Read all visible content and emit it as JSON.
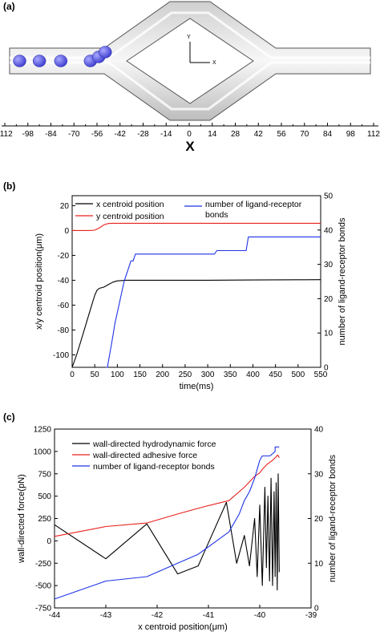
{
  "panels": {
    "a": "(a)",
    "b": "(b)",
    "c": "(c)"
  },
  "colors": {
    "black": "#000000",
    "red": "#e8211c",
    "blue": "#1f34e6",
    "cell": "#5a5ae6",
    "pipe": "#d9d9d9"
  },
  "chart_data": [
    {
      "type": "diagram",
      "panel": "(a)",
      "xlabel": "X",
      "x_ticks": [
        "-112",
        "-98",
        "-84",
        "-70",
        "-56",
        "-42",
        "-28",
        "-14",
        "0",
        "14",
        "28",
        "42",
        "56",
        "70",
        "84",
        "98",
        "112"
      ],
      "xlim": [
        -112,
        112
      ],
      "axes_labels": {
        "y": "Y",
        "x": "X"
      },
      "cells_x": [
        -103,
        -91,
        -78,
        -60,
        -55,
        -51
      ]
    },
    {
      "type": "line",
      "panel": "(b)",
      "xlabel": "time(ms)",
      "ylabel": "x/y centroid position(μm)",
      "ylabel_right": "number of ligand-receptor bonds",
      "xlim": [
        0,
        550
      ],
      "ylim": [
        -110,
        28
      ],
      "ylim_right": [
        0,
        50
      ],
      "x_ticks": [
        "0",
        "50",
        "100",
        "150",
        "200",
        "250",
        "300",
        "350",
        "400",
        "450",
        "500",
        "550"
      ],
      "y_ticks": [
        "20",
        "0",
        "-20",
        "-40",
        "-60",
        "-80",
        "-100"
      ],
      "y_ticks_right": [
        "50",
        "40",
        "30",
        "20",
        "10",
        "0"
      ],
      "series": [
        {
          "name": "x centroid position",
          "axis": "left",
          "color": "#000000",
          "x": [
            0,
            10,
            20,
            30,
            40,
            50,
            55,
            60,
            70,
            80,
            90,
            100,
            120,
            150,
            200,
            300,
            400,
            500,
            550
          ],
          "y": [
            -110,
            -100,
            -88,
            -76,
            -64,
            -52,
            -48,
            -46.5,
            -45.5,
            -43.5,
            -41.5,
            -40.5,
            -40,
            -40,
            -40,
            -40,
            -39.8,
            -39.6,
            -39.5
          ]
        },
        {
          "name": "y centroid position",
          "axis": "left",
          "color": "#e8211c",
          "x": [
            0,
            40,
            50,
            60,
            70,
            80,
            90,
            100,
            150,
            300,
            550
          ],
          "y": [
            0,
            0,
            0.3,
            2,
            4.5,
            5.6,
            5.8,
            5.8,
            5.8,
            5.8,
            5.8
          ]
        },
        {
          "name": "number of ligand-receptor bonds",
          "axis": "right",
          "color": "#1f34e6",
          "x": [
            75,
            78,
            82,
            86,
            90,
            95,
            100,
            105,
            110,
            115,
            120,
            125,
            130,
            135,
            140,
            145,
            150,
            200,
            250,
            315,
            320,
            385,
            390,
            550
          ],
          "y": [
            0,
            0,
            3,
            6,
            9,
            13,
            16,
            19,
            22,
            25,
            27,
            29,
            31,
            31,
            33,
            33,
            33,
            33,
            33,
            33,
            34,
            34,
            38,
            38
          ]
        }
      ]
    },
    {
      "type": "line",
      "panel": "(c)",
      "xlabel": "x centroid position(μm)",
      "ylabel": "wall-directed force(pN)",
      "ylabel_right": "number of ligand-receptor bonds",
      "xlim": [
        -44,
        -39
      ],
      "ylim": [
        -750,
        1250
      ],
      "ylim_right": [
        0,
        40
      ],
      "x_ticks": [
        "-44",
        "-43",
        "-42",
        "-41",
        "-40",
        "-39"
      ],
      "y_ticks": [
        "1250",
        "1000",
        "750",
        "500",
        "250",
        "0",
        "-250",
        "-500",
        "-750"
      ],
      "y_ticks_right": [
        "40",
        "30",
        "20",
        "10",
        "0"
      ],
      "series": [
        {
          "name": "wall-directed hydrodynamic force",
          "axis": "left",
          "color": "#000000",
          "x": [
            -44,
            -43,
            -42.2,
            -41.6,
            -41.2,
            -40.65,
            -40.45,
            -40.3,
            -40.2,
            -40.1,
            -40.05,
            -40.0,
            -39.95,
            -39.9,
            -39.87,
            -39.84,
            -39.81,
            -39.78,
            -39.75,
            -39.72,
            -39.7,
            -39.68,
            -39.66,
            -39.64,
            -39.62
          ],
          "y": [
            180,
            -200,
            190,
            -370,
            -280,
            430,
            -250,
            60,
            -280,
            250,
            -400,
            400,
            -500,
            600,
            -300,
            500,
            -450,
            700,
            -500,
            550,
            -400,
            650,
            -550,
            750,
            -350
          ]
        },
        {
          "name": "wall-directed adhesive force",
          "axis": "left",
          "color": "#e8211c",
          "x": [
            -44,
            -43,
            -42.2,
            -41.6,
            -41.1,
            -40.6,
            -40.3,
            -40.2,
            -40.1,
            -40.0,
            -39.95,
            -39.9,
            -39.85,
            -39.8,
            -39.75,
            -39.7,
            -39.65,
            -39.62
          ],
          "y": [
            50,
            160,
            200,
            300,
            380,
            450,
            600,
            660,
            720,
            760,
            800,
            830,
            860,
            880,
            900,
            930,
            960,
            930
          ]
        },
        {
          "name": "number of ligand-receptor bonds",
          "axis": "right",
          "color": "#1f34e6",
          "x": [
            -44,
            -43,
            -42.2,
            -41.6,
            -41.2,
            -40.6,
            -40.4,
            -40.3,
            -40.2,
            -40.1,
            -40.05,
            -40.0,
            -39.95,
            -39.9,
            -39.8,
            -39.7,
            -39.7,
            -39.65,
            -39.62
          ],
          "y": [
            2,
            6,
            7,
            10,
            12,
            17,
            21,
            24,
            26,
            29,
            31,
            33,
            34,
            34,
            34,
            35,
            36,
            36,
            36
          ]
        }
      ]
    }
  ]
}
